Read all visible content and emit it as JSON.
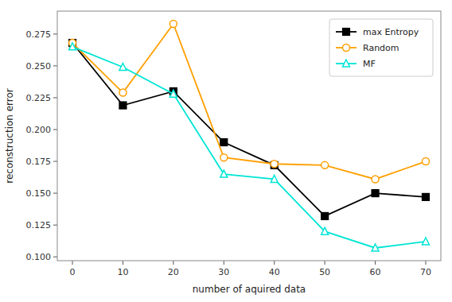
{
  "chart_data": {
    "type": "line",
    "x": [
      0,
      10,
      20,
      30,
      40,
      50,
      60,
      70
    ],
    "series": [
      {
        "name": "max Entropy",
        "color": "black",
        "marker": "square",
        "values": [
          0.268,
          0.219,
          0.23,
          0.19,
          0.172,
          0.132,
          0.15,
          0.147
        ]
      },
      {
        "name": "Random",
        "color": "#ff9f00",
        "marker": "circle",
        "values": [
          0.268,
          0.229,
          0.283,
          0.178,
          0.173,
          0.172,
          0.161,
          0.175
        ]
      },
      {
        "name": "MF",
        "color": "#00e5d5",
        "marker": "triangle",
        "values": [
          0.265,
          0.249,
          0.228,
          0.165,
          0.161,
          0.12,
          0.107,
          0.112
        ]
      }
    ],
    "x_label": "number of aquired data",
    "y_label": "reconstruction error",
    "xlim": [
      -3,
      73
    ],
    "ylim": [
      0.097,
      0.293
    ],
    "xticks": [
      0,
      10,
      20,
      30,
      40,
      50,
      60,
      70
    ],
    "yticks": [
      {
        "value": 0.1,
        "label": "0.100"
      },
      0.125,
      {
        "value": 0.15,
        "label": "0.150"
      },
      0.175,
      {
        "value": 0.2,
        "label": "0.200"
      },
      0.225,
      {
        "value": 0.25,
        "label": "0.250"
      },
      0.275
    ],
    "grid": false,
    "legend": "upper right"
  }
}
